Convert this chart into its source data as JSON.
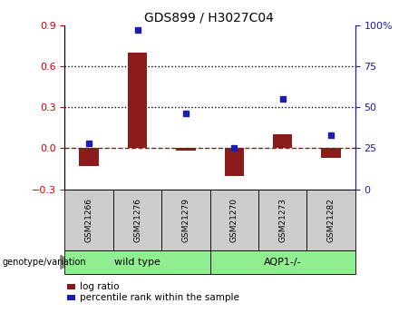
{
  "title": "GDS899 / H3027C04",
  "samples": [
    "GSM21266",
    "GSM21276",
    "GSM21279",
    "GSM21270",
    "GSM21273",
    "GSM21282"
  ],
  "log_ratio": [
    -0.13,
    0.7,
    -0.02,
    -0.2,
    0.1,
    -0.07
  ],
  "percentile_rank": [
    28,
    97,
    46,
    25,
    55,
    33
  ],
  "bar_color": "#8B1A1A",
  "dot_color": "#1C1CB0",
  "left_ylim": [
    -0.3,
    0.9
  ],
  "right_ylim": [
    0,
    100
  ],
  "left_yticks": [
    -0.3,
    0.0,
    0.3,
    0.6,
    0.9
  ],
  "right_yticks": [
    0,
    25,
    50,
    75,
    100
  ],
  "hline_y": [
    0.3,
    0.6
  ],
  "group_colors": [
    "#90EE90",
    "#90EE90"
  ],
  "group_labels": [
    "wild type",
    "AQP1-/-"
  ],
  "sample_box_color": "#CCCCCC",
  "genotype_label": "genotype/variation",
  "legend_log": "log ratio",
  "legend_pct": "percentile rank within the sample"
}
